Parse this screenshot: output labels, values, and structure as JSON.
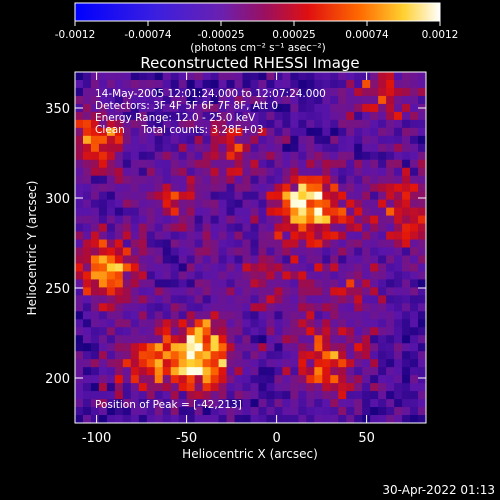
{
  "colorbar": {
    "ticks": [
      "-0.0012",
      "-0.00074",
      "-0.00025",
      "0.00025",
      "0.00074",
      "0.0012"
    ],
    "unit_label": "(photons cm⁻² s⁻¹ asec⁻²)",
    "range": [
      -0.0012,
      0.0012
    ]
  },
  "overlay": {
    "line1": "14-May-2005 12:01:24.000 to 12:07:24.000",
    "line2": "Detectors: 3F 4F 5F 6F 7F 8F, Att 0",
    "line3": "Energy Range: 12.0 - 25.0 keV",
    "line4": "Clean     Total counts: 3.28E+03",
    "peak": "Position of Peak = [-42,213]"
  },
  "footer": {
    "date": "30-Apr-2022 01:13"
  },
  "chart_data": {
    "type": "heatmap",
    "title": "Reconstructed RHESSI Image",
    "xlabel": "Heliocentric X (arcsec)",
    "ylabel": "Heliocentric Y (arcsec)",
    "xlim": [
      -112,
      83
    ],
    "ylim": [
      175,
      370
    ],
    "x_ticks": [
      -100,
      -50,
      0,
      50
    ],
    "y_ticks": [
      200,
      250,
      300,
      350
    ],
    "z_range": [
      -0.0012,
      0.0012
    ],
    "colormap": "rainbow-blue-purple-red-yellow-white",
    "grid": false,
    "peak_position": [
      -42,
      213
    ],
    "hotspots": [
      {
        "x": 18,
        "y": 294,
        "intensity": 0.00115
      },
      {
        "x": -42,
        "y": 213,
        "intensity": 0.0012
      },
      {
        "x": -95,
        "y": 260,
        "intensity": 0.00095
      },
      {
        "x": -102,
        "y": 332,
        "intensity": 0.0008
      },
      {
        "x": 28,
        "y": 207,
        "intensity": 0.00085
      },
      {
        "x": 70,
        "y": 293,
        "intensity": 0.0007
      },
      {
        "x": 58,
        "y": 356,
        "intensity": 0.0006
      },
      {
        "x": -25,
        "y": 330,
        "intensity": 0.00055
      },
      {
        "x": -75,
        "y": 210,
        "intensity": 0.00065
      },
      {
        "x": -58,
        "y": 300,
        "intensity": 0.0005
      },
      {
        "x": 5,
        "y": 250,
        "intensity": 0.0004
      },
      {
        "x": 45,
        "y": 248,
        "intensity": 0.00045
      },
      {
        "x": -30,
        "y": 258,
        "intensity": 0.0003
      }
    ]
  }
}
